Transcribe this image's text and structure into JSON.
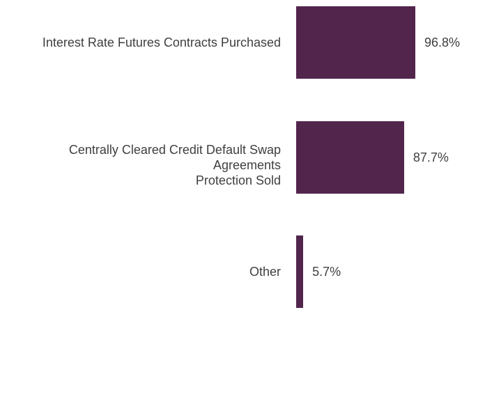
{
  "chart_data": {
    "type": "bar",
    "orientation": "horizontal",
    "categories": [
      "Interest Rate Futures Contracts Purchased",
      "Centrally Cleared Credit Default Swap Agreements\nProtection Sold",
      "Other"
    ],
    "values": [
      96.8,
      87.7,
      5.7
    ],
    "value_labels": [
      "96.8%",
      "87.7%",
      "5.7%"
    ],
    "bar_color": "#52264c",
    "xlim": [
      0,
      100
    ],
    "grid": false,
    "legend": "none"
  }
}
